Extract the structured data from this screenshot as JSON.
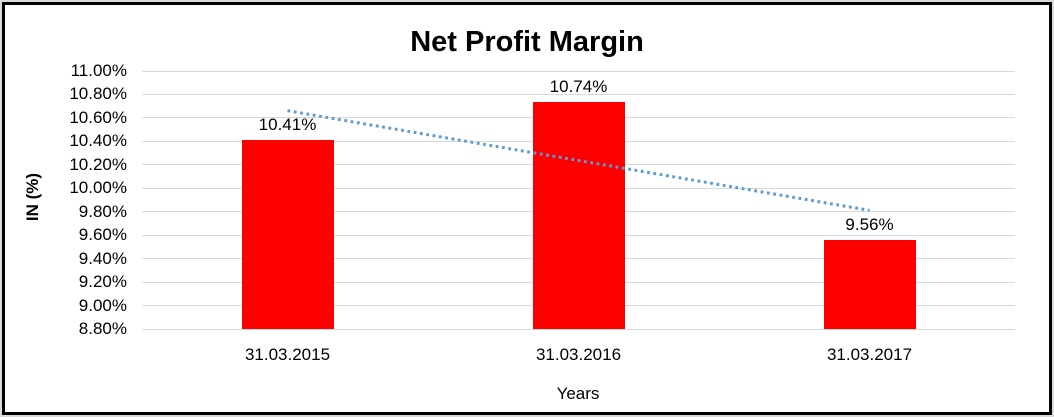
{
  "chart_data": {
    "type": "bar",
    "title": "Net Profit Margin",
    "categories": [
      "31.03.2015",
      "31.03.2016",
      "31.03.2017"
    ],
    "values": [
      10.41,
      10.74,
      9.56
    ],
    "value_labels": [
      "10.41%",
      "10.74%",
      "9.56%"
    ],
    "xlabel": "Years",
    "ylabel": "IN (%)",
    "ylim": [
      8.8,
      11.0
    ],
    "ytick_step": 0.2,
    "ytick_labels": [
      "11.00%",
      "10.80%",
      "10.60%",
      "10.40%",
      "10.20%",
      "10.00%",
      "9.80%",
      "9.60%",
      "9.40%",
      "9.20%",
      "9.00%",
      "8.80%"
    ],
    "grid": true,
    "legend": "none",
    "bar_color": "#ff0000",
    "gridline_color": "#d9d9d9",
    "frame_color": "#000000",
    "text_color": "#000000",
    "trendline": {
      "type": "linear",
      "style": "dotted",
      "color": "#5b9bd5"
    }
  }
}
